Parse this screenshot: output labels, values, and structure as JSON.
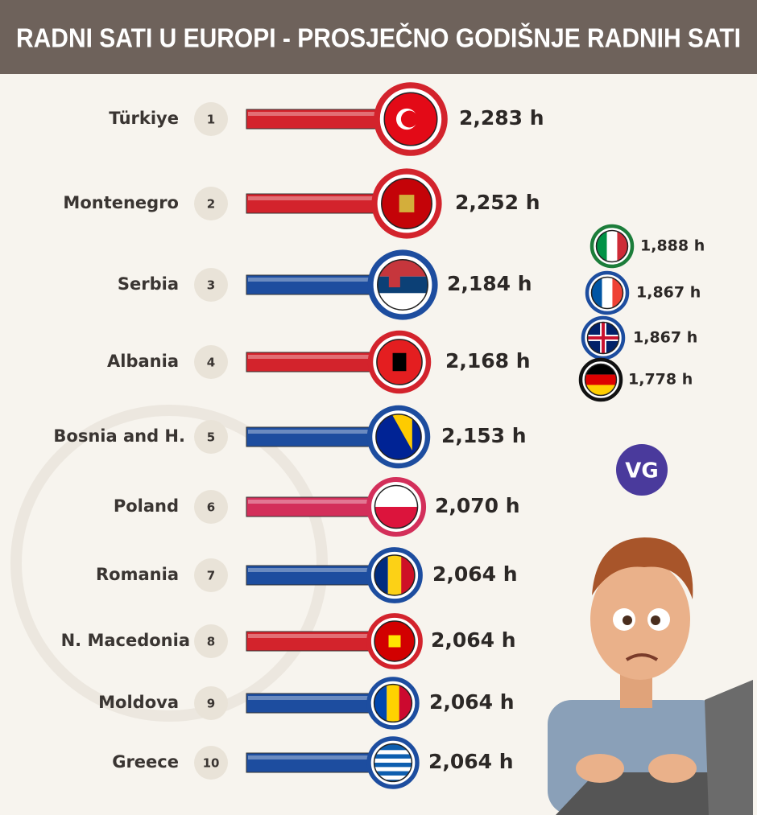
{
  "header": {
    "title": "RADNI SATI U EUROPI - PROSJEČNO GODIŠNJE RADNIH SATI"
  },
  "ranking": [
    {
      "country": "Türkiye",
      "rank": "1",
      "hours": "2,283 h"
    },
    {
      "country": "Montenegro",
      "rank": "2",
      "hours": "2,252 h"
    },
    {
      "country": "Serbia",
      "rank": "3",
      "hours": "2,184 h"
    },
    {
      "country": "Albania",
      "rank": "4",
      "hours": "2,168 h"
    },
    {
      "country": "Bosnia and H.",
      "rank": "5",
      "hours": "2,153 h"
    },
    {
      "country": "Poland",
      "rank": "6",
      "hours": "2,070 h"
    },
    {
      "country": "Romania",
      "rank": "7",
      "hours": "2,064 h"
    },
    {
      "country": "N. Macedonia",
      "rank": "8",
      "hours": "2,064 h"
    },
    {
      "country": "Moldova",
      "rank": "9",
      "hours": "2,064 h"
    },
    {
      "country": "Greece",
      "rank": "10",
      "hours": "2,064 h"
    }
  ],
  "others": [
    {
      "hours": "1,888 h"
    },
    {
      "hours": "1,867 h"
    },
    {
      "hours": "1,867 h"
    },
    {
      "hours": "1,778 h"
    }
  ],
  "logo": {
    "text": "VG"
  }
}
